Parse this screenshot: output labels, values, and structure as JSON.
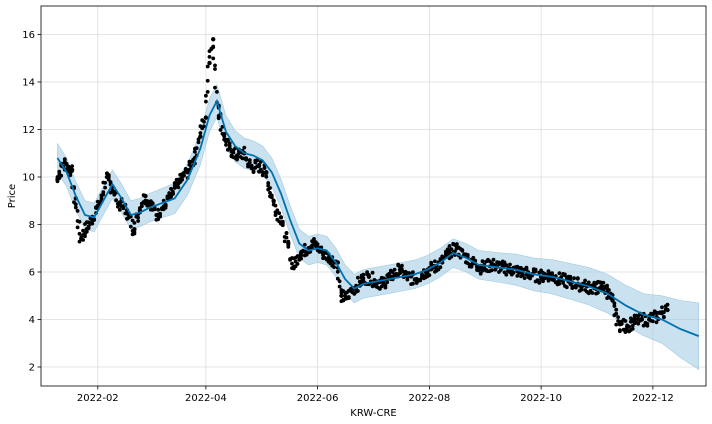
{
  "chart_data": {
    "type": "scatter",
    "title": "",
    "xlabel": "KRW-CRE",
    "ylabel": "Price",
    "x_ticks": [
      "2022-02",
      "2022-04",
      "2022-06",
      "2022-08",
      "2022-10",
      "2022-12"
    ],
    "y_ticks": [
      2,
      4,
      6,
      8,
      10,
      12,
      14,
      16
    ],
    "xlim": [
      "2022-01-01",
      "2022-12-30"
    ],
    "ylim": [
      1.2,
      17.2
    ],
    "grid": true,
    "colors": {
      "observed": "#000000",
      "forecast": "#0072B2",
      "interval": "#9ecae1",
      "grid": "#dddddd"
    },
    "series": [
      {
        "kind": "observed",
        "x": [
          "2022-01-10",
          "2022-01-14",
          "2022-01-18",
          "2022-01-20",
          "2022-01-23",
          "2022-01-26",
          "2022-01-29",
          "2022-02-03",
          "2022-02-06",
          "2022-02-09",
          "2022-02-13",
          "2022-02-17",
          "2022-02-21",
          "2022-02-24",
          "2022-02-27",
          "2022-03-02",
          "2022-03-06",
          "2022-03-10",
          "2022-03-14",
          "2022-03-18",
          "2022-03-22",
          "2022-03-26",
          "2022-03-29",
          "2022-04-01",
          "2022-04-03",
          "2022-04-05",
          "2022-04-08",
          "2022-04-11",
          "2022-04-14",
          "2022-04-18",
          "2022-04-22",
          "2022-04-26",
          "2022-04-30",
          "2022-05-04",
          "2022-05-08",
          "2022-05-12",
          "2022-05-16",
          "2022-05-19",
          "2022-05-23",
          "2022-05-27",
          "2022-05-31",
          "2022-06-04",
          "2022-06-08",
          "2022-06-12",
          "2022-06-14",
          "2022-06-17",
          "2022-06-21",
          "2022-06-25",
          "2022-06-29",
          "2022-07-03",
          "2022-07-07",
          "2022-07-11",
          "2022-07-16",
          "2022-07-20",
          "2022-07-25",
          "2022-07-30",
          "2022-08-04",
          "2022-08-08",
          "2022-08-12",
          "2022-08-16",
          "2022-08-20",
          "2022-08-25",
          "2022-08-30",
          "2022-09-05",
          "2022-09-10",
          "2022-09-15",
          "2022-09-20",
          "2022-09-26",
          "2022-10-01",
          "2022-10-06",
          "2022-10-11",
          "2022-10-16",
          "2022-10-21",
          "2022-10-26",
          "2022-10-31",
          "2022-11-03",
          "2022-11-06",
          "2022-11-09",
          "2022-11-13",
          "2022-11-17",
          "2022-11-21",
          "2022-11-25",
          "2022-11-29",
          "2022-12-03",
          "2022-12-06",
          "2022-12-09"
        ],
        "y": [
          9.9,
          10.6,
          10.3,
          9.1,
          7.4,
          7.8,
          8.2,
          9.0,
          10.0,
          9.6,
          8.9,
          8.6,
          7.8,
          8.6,
          9.2,
          8.9,
          8.4,
          8.8,
          9.3,
          9.8,
          10.2,
          10.8,
          11.7,
          12.5,
          14.8,
          15.8,
          13.0,
          11.8,
          11.2,
          10.9,
          11.0,
          10.4,
          10.5,
          10.2,
          9.0,
          8.3,
          7.2,
          6.2,
          6.8,
          7.0,
          7.2,
          6.8,
          6.6,
          6.4,
          5.0,
          4.9,
          5.3,
          5.6,
          5.8,
          5.6,
          5.5,
          5.8,
          6.1,
          5.8,
          5.7,
          6.0,
          6.2,
          6.4,
          6.8,
          7.0,
          6.7,
          6.4,
          6.2,
          6.3,
          6.2,
          6.1,
          6.0,
          5.9,
          5.8,
          5.9,
          5.7,
          5.6,
          5.5,
          5.4,
          5.3,
          5.4,
          5.3,
          4.8,
          3.8,
          3.7,
          3.9,
          4.0,
          4.0,
          4.1,
          4.3,
          4.4
        ]
      },
      {
        "kind": "forecast",
        "x": [
          "2022-01-10",
          "2022-01-15",
          "2022-01-20",
          "2022-01-25",
          "2022-01-30",
          "2022-02-04",
          "2022-02-09",
          "2022-02-14",
          "2022-02-19",
          "2022-02-24",
          "2022-03-01",
          "2022-03-08",
          "2022-03-15",
          "2022-03-22",
          "2022-03-29",
          "2022-04-03",
          "2022-04-07",
          "2022-04-12",
          "2022-04-17",
          "2022-04-22",
          "2022-04-27",
          "2022-05-02",
          "2022-05-07",
          "2022-05-12",
          "2022-05-17",
          "2022-05-22",
          "2022-05-27",
          "2022-06-01",
          "2022-06-06",
          "2022-06-11",
          "2022-06-16",
          "2022-06-21",
          "2022-06-26",
          "2022-07-03",
          "2022-07-10",
          "2022-07-17",
          "2022-07-24",
          "2022-07-31",
          "2022-08-07",
          "2022-08-14",
          "2022-08-21",
          "2022-08-28",
          "2022-09-07",
          "2022-09-17",
          "2022-09-27",
          "2022-10-07",
          "2022-10-17",
          "2022-10-27",
          "2022-11-06",
          "2022-11-16",
          "2022-11-26",
          "2022-12-06",
          "2022-12-16",
          "2022-12-26"
        ],
        "y": [
          10.8,
          10.2,
          9.2,
          8.4,
          8.3,
          9.0,
          9.7,
          9.1,
          8.4,
          8.5,
          8.7,
          8.9,
          9.1,
          9.9,
          11.2,
          12.6,
          13.2,
          11.9,
          11.3,
          11.0,
          10.9,
          10.7,
          10.2,
          9.3,
          8.2,
          7.2,
          6.9,
          7.0,
          6.9,
          6.4,
          5.7,
          5.3,
          5.5,
          5.6,
          5.7,
          5.8,
          5.9,
          6.1,
          6.4,
          6.8,
          6.6,
          6.3,
          6.2,
          6.1,
          5.9,
          5.8,
          5.6,
          5.4,
          5.1,
          4.6,
          4.2,
          4.0,
          3.6,
          3.3
        ]
      },
      {
        "kind": "interval",
        "x": [
          "2022-01-10",
          "2022-02-01",
          "2022-03-01",
          "2022-04-05",
          "2022-05-01",
          "2022-06-01",
          "2022-07-01",
          "2022-08-01",
          "2022-09-01",
          "2022-10-01",
          "2022-11-01",
          "2022-12-01",
          "2022-12-26"
        ],
        "half_width": [
          0.6,
          0.6,
          0.6,
          0.7,
          0.6,
          0.6,
          0.6,
          0.6,
          0.6,
          0.7,
          0.8,
          0.9,
          1.4
        ]
      }
    ]
  }
}
